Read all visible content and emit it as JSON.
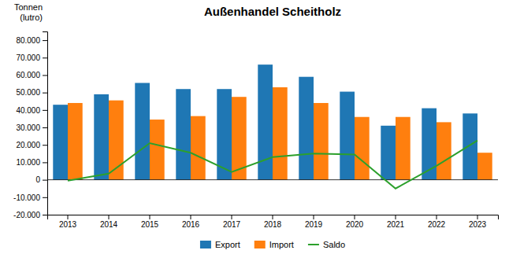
{
  "chart_data": {
    "type": "bar",
    "title": "Außenhandel Scheitholz",
    "ylabel": "Tonnen\n(lutro)",
    "categories": [
      "2013",
      "2014",
      "2015",
      "2016",
      "2017",
      "2018",
      "2019",
      "2020",
      "2021",
      "2022",
      "2023"
    ],
    "series": [
      {
        "name": "Export",
        "type": "bar",
        "values": [
          43000,
          49000,
          55500,
          52000,
          52000,
          66000,
          59000,
          50500,
          31000,
          41000,
          38000
        ]
      },
      {
        "name": "Import",
        "type": "bar",
        "values": [
          44000,
          45500,
          34500,
          36500,
          47500,
          53000,
          44000,
          36000,
          36000,
          33000,
          15500
        ]
      },
      {
        "name": "Saldo",
        "type": "line",
        "values": [
          -500,
          3500,
          21000,
          15500,
          4500,
          13000,
          15000,
          14500,
          -5000,
          8000,
          22500
        ]
      }
    ],
    "ylim": [
      -20000,
      85000
    ],
    "yticks": [
      {
        "value": -20000,
        "label": "-20.000"
      },
      {
        "value": -10000,
        "label": "-10.000"
      },
      0,
      {
        "value": 10000,
        "label": "10.000"
      },
      {
        "value": 20000,
        "label": "20.000"
      },
      {
        "value": 30000,
        "label": "30.000"
      },
      {
        "value": 40000,
        "label": "40.000"
      },
      {
        "value": 50000,
        "label": "50.000"
      },
      {
        "value": 60000,
        "label": "60.000"
      },
      {
        "value": 70000,
        "label": "70.000"
      },
      {
        "value": 80000,
        "label": "80.000"
      }
    ],
    "grid": false,
    "legend": "bottom"
  }
}
